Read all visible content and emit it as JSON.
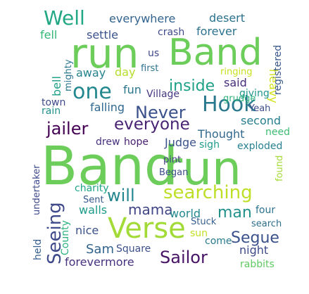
{
  "words": [
    {
      "text": "Band",
      "color": "#6ccd5a"
    },
    {
      "text": "run",
      "color": "#6ccd5a"
    },
    {
      "text": "Band",
      "color": "#6ccd5a"
    },
    {
      "text": "run",
      "color": "#6ccd5a"
    },
    {
      "text": "Verse",
      "color": "#a2da37"
    },
    {
      "text": "Hook",
      "color": "#2a788e"
    },
    {
      "text": "searching",
      "color": "#bddf26"
    },
    {
      "text": "one",
      "color": "#23888e"
    },
    {
      "text": "Well",
      "color": "#22a785"
    },
    {
      "text": "Never",
      "color": "#3b518b"
    },
    {
      "text": "everyone",
      "color": "#482374"
    },
    {
      "text": "jailer",
      "color": "#440154"
    },
    {
      "text": "Sailor",
      "color": "#471365"
    },
    {
      "text": "Seeing",
      "color": "#3e4a89"
    },
    {
      "text": "Segue",
      "color": "#3b518b"
    },
    {
      "text": "will",
      "color": "#24868e"
    },
    {
      "text": "mama",
      "color": "#414487"
    },
    {
      "text": "man",
      "color": "#21918c"
    },
    {
      "text": "inside",
      "color": "#1fa187"
    },
    {
      "text": "everywhere",
      "color": "#33638d"
    },
    {
      "text": "desert",
      "color": "#2c718e"
    },
    {
      "text": "fell",
      "color": "#35b779"
    },
    {
      "text": "settle",
      "color": "#3b528b"
    },
    {
      "text": "forever",
      "color": "#2c728e"
    },
    {
      "text": "crash",
      "color": "#3e4989"
    },
    {
      "text": "heavy",
      "color": "#d2e21b"
    },
    {
      "text": "registered",
      "color": "#38588c"
    },
    {
      "text": "bell",
      "color": "#1f9f88"
    },
    {
      "text": "mighty",
      "color": "#2a768e"
    },
    {
      "text": "us",
      "color": "#3f4889"
    },
    {
      "text": "first",
      "color": "#2c728e"
    },
    {
      "text": "away",
      "color": "#26828e"
    },
    {
      "text": "day",
      "color": "#b5de2b"
    },
    {
      "text": "ringing",
      "color": "#c8e020"
    },
    {
      "text": "said",
      "color": "#472c7a"
    },
    {
      "text": "fun",
      "color": "#2b758e"
    },
    {
      "text": "Village",
      "color": "#453781"
    },
    {
      "text": "giving",
      "color": "#1f968b"
    },
    {
      "text": "town",
      "color": "#3e4989"
    },
    {
      "text": "rain",
      "color": "#21918c"
    },
    {
      "text": "falling",
      "color": "#31688e"
    },
    {
      "text": "grudge",
      "color": "#2db27d"
    },
    {
      "text": "Yeah",
      "color": "#3d4e8a"
    },
    {
      "text": "second",
      "color": "#277f8e"
    },
    {
      "text": "Thought",
      "color": "#31688e"
    },
    {
      "text": "need",
      "color": "#3fbc73"
    },
    {
      "text": "drew",
      "color": "#46307e"
    },
    {
      "text": "hope",
      "color": "#481f70"
    },
    {
      "text": "Judge",
      "color": "#3b528b"
    },
    {
      "text": "sigh",
      "color": "#1e9b8a"
    },
    {
      "text": "exploded",
      "color": "#27808e"
    },
    {
      "text": "undertaker",
      "color": "#3e4989"
    },
    {
      "text": "pint",
      "color": "#424086"
    },
    {
      "text": "Began",
      "color": "#3d4d8a"
    },
    {
      "text": "found",
      "color": "#a5db36"
    },
    {
      "text": "charity",
      "color": "#20a386"
    },
    {
      "text": "Sent",
      "color": "#375a8c"
    },
    {
      "text": "walls",
      "color": "#1e9b8a"
    },
    {
      "text": "world",
      "color": "#23898e"
    },
    {
      "text": "four",
      "color": "#2c728e"
    },
    {
      "text": "County",
      "color": "#2cb17e"
    },
    {
      "text": "Stuck",
      "color": "#355f8d"
    },
    {
      "text": "search",
      "color": "#2e6e8e"
    },
    {
      "text": "nice",
      "color": "#3b518b"
    },
    {
      "text": "sun",
      "color": "#c2df23"
    },
    {
      "text": "held",
      "color": "#355e8d"
    },
    {
      "text": "Sam",
      "color": "#32648e"
    },
    {
      "text": "Square",
      "color": "#3c4f8a"
    },
    {
      "text": "come",
      "color": "#29798e"
    },
    {
      "text": "night",
      "color": "#3e4a89"
    },
    {
      "text": "forevermore",
      "color": "#46317e"
    },
    {
      "text": "rabbits",
      "color": "#5ec962"
    }
  ]
}
